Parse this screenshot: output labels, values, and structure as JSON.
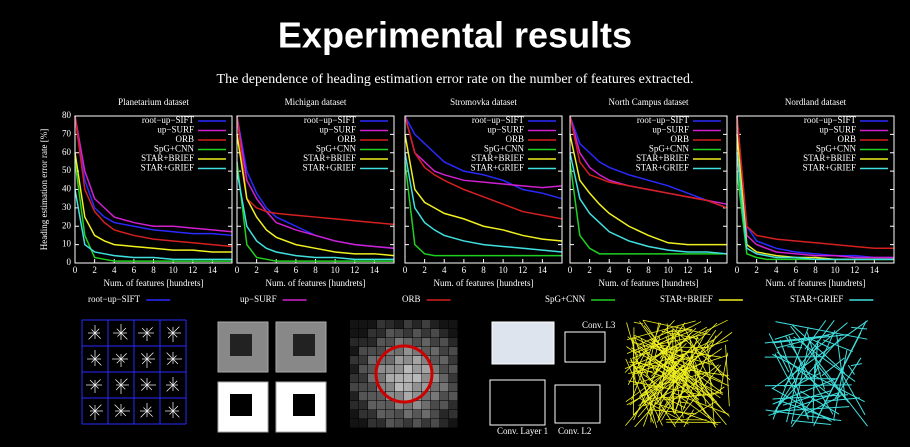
{
  "title": "Experimental results",
  "subtitle": "The dependence of heading estimation error rate on the number of features extracted.",
  "illustrations": {
    "cnn_labels": [
      "Conv. L3",
      "Conv. Layer 1",
      "Conv. L2"
    ]
  },
  "chart_data": [
    {
      "type": "line",
      "title": "Planetarium dataset",
      "xlabel": "Num. of features [hundrets]",
      "ylabel": "Heading estimation error rate [%]",
      "x": [
        0,
        1,
        2,
        3,
        4,
        6,
        8,
        10,
        12,
        14,
        16
      ],
      "xlim": [
        0,
        16
      ],
      "ylim": [
        0,
        80
      ],
      "xticks": [
        0,
        2,
        4,
        6,
        8,
        10,
        12,
        14
      ],
      "yticks": [
        0,
        10,
        20,
        30,
        40,
        50,
        60,
        70,
        80
      ],
      "legend": "upper right",
      "series": [
        {
          "name": "root−up−SIFT",
          "color": "#2a2aff",
          "values": [
            80,
            45,
            30,
            25,
            22,
            20,
            18,
            17,
            16,
            16,
            15
          ]
        },
        {
          "name": "up−SURF",
          "color": "#d020d0",
          "values": [
            80,
            50,
            35,
            30,
            25,
            22,
            20,
            20,
            19,
            18,
            17
          ]
        },
        {
          "name": "ORB",
          "color": "#d42020",
          "values": [
            80,
            40,
            28,
            22,
            18,
            15,
            13,
            12,
            11,
            10,
            9
          ]
        },
        {
          "name": "SpG+CNN",
          "color": "#20d020",
          "values": [
            55,
            15,
            3,
            2,
            1,
            1,
            1,
            1,
            1,
            1,
            1
          ]
        },
        {
          "name": "STAR+BRIEF",
          "color": "#f0f020",
          "values": [
            60,
            25,
            15,
            12,
            10,
            9,
            8,
            7,
            7,
            6,
            6
          ]
        },
        {
          "name": "STAR+GRIEF",
          "color": "#40e0e0",
          "values": [
            40,
            10,
            6,
            5,
            4,
            3,
            3,
            2,
            2,
            2,
            2
          ]
        }
      ]
    },
    {
      "type": "line",
      "title": "Michigan dataset",
      "xlabel": "Num. of features [hundrets]",
      "x": [
        0,
        1,
        2,
        3,
        4,
        6,
        8,
        10,
        12,
        14,
        16
      ],
      "xlim": [
        0,
        16
      ],
      "ylim": [
        0,
        80
      ],
      "xticks": [
        0,
        2,
        4,
        6,
        8,
        10,
        12,
        14
      ],
      "yticks": [
        0,
        10,
        20,
        30,
        40,
        50,
        60,
        70,
        80
      ],
      "legend": "upper right",
      "series": [
        {
          "name": "root−up−SIFT",
          "color": "#2a2aff",
          "values": [
            80,
            50,
            38,
            30,
            25,
            20,
            15,
            12,
            10,
            9,
            8
          ]
        },
        {
          "name": "up−SURF",
          "color": "#d020d0",
          "values": [
            80,
            45,
            35,
            28,
            22,
            18,
            15,
            12,
            10,
            9,
            8
          ]
        },
        {
          "name": "ORB",
          "color": "#d42020",
          "values": [
            80,
            35,
            30,
            28,
            27,
            26,
            25,
            24,
            23,
            22,
            21
          ]
        },
        {
          "name": "SpG+CNN",
          "color": "#20d020",
          "values": [
            55,
            10,
            3,
            2,
            1,
            1,
            1,
            1,
            1,
            1,
            1
          ]
        },
        {
          "name": "STAR+BRIEF",
          "color": "#f0f020",
          "values": [
            70,
            35,
            25,
            18,
            14,
            10,
            8,
            6,
            5,
            5,
            4
          ]
        },
        {
          "name": "STAR+GRIEF",
          "color": "#40e0e0",
          "values": [
            50,
            20,
            12,
            8,
            6,
            4,
            3,
            3,
            2,
            2,
            2
          ]
        }
      ]
    },
    {
      "type": "line",
      "title": "Stromovka dataset",
      "xlabel": "Num. of features [hundrets]",
      "x": [
        0,
        1,
        2,
        3,
        4,
        6,
        8,
        10,
        12,
        14,
        16
      ],
      "xlim": [
        0,
        16
      ],
      "ylim": [
        0,
        80
      ],
      "xticks": [
        0,
        2,
        4,
        6,
        8,
        10,
        12,
        14
      ],
      "yticks": [
        0,
        10,
        20,
        30,
        40,
        50,
        60,
        70,
        80
      ],
      "legend": "upper right",
      "series": [
        {
          "name": "root−up−SIFT",
          "color": "#2a2aff",
          "values": [
            80,
            70,
            65,
            60,
            55,
            50,
            48,
            45,
            40,
            38,
            35
          ]
        },
        {
          "name": "up−SURF",
          "color": "#d020d0",
          "values": [
            80,
            60,
            55,
            50,
            48,
            45,
            44,
            43,
            42,
            41,
            42
          ]
        },
        {
          "name": "ORB",
          "color": "#d42020",
          "values": [
            80,
            60,
            52,
            48,
            45,
            40,
            36,
            32,
            28,
            26,
            24
          ]
        },
        {
          "name": "SpG+CNN",
          "color": "#20d020",
          "values": [
            55,
            10,
            5,
            4,
            4,
            4,
            4,
            4,
            4,
            4,
            4
          ]
        },
        {
          "name": "STAR+BRIEF",
          "color": "#f0f020",
          "values": [
            70,
            40,
            33,
            30,
            27,
            24,
            20,
            18,
            15,
            13,
            12
          ]
        },
        {
          "name": "STAR+GRIEF",
          "color": "#40e0e0",
          "values": [
            60,
            30,
            22,
            18,
            15,
            12,
            10,
            9,
            8,
            7,
            6
          ]
        }
      ]
    },
    {
      "type": "line",
      "title": "North Campus dataset",
      "xlabel": "Num. of features [hundrets]",
      "x": [
        0,
        1,
        2,
        3,
        4,
        6,
        8,
        10,
        12,
        14,
        16
      ],
      "xlim": [
        0,
        16
      ],
      "ylim": [
        0,
        80
      ],
      "xticks": [
        0,
        2,
        4,
        6,
        8,
        10,
        12,
        14
      ],
      "yticks": [
        0,
        10,
        20,
        30,
        40,
        50,
        60,
        70,
        80
      ],
      "legend": "upper right",
      "series": [
        {
          "name": "root−up−SIFT",
          "color": "#2a2aff",
          "values": [
            80,
            65,
            60,
            55,
            52,
            48,
            45,
            42,
            38,
            34,
            30
          ]
        },
        {
          "name": "up−SURF",
          "color": "#d020d0",
          "values": [
            80,
            60,
            52,
            48,
            45,
            42,
            40,
            38,
            36,
            34,
            32
          ]
        },
        {
          "name": "ORB",
          "color": "#d42020",
          "values": [
            80,
            55,
            48,
            46,
            44,
            42,
            40,
            38,
            36,
            34,
            30
          ]
        },
        {
          "name": "SpG+CNN",
          "color": "#20d020",
          "values": [
            55,
            15,
            8,
            5,
            5,
            5,
            5,
            5,
            5,
            5,
            5
          ]
        },
        {
          "name": "STAR+BRIEF",
          "color": "#f0f020",
          "values": [
            70,
            45,
            38,
            32,
            27,
            20,
            15,
            11,
            10,
            10,
            10
          ]
        },
        {
          "name": "STAR+GRIEF",
          "color": "#40e0e0",
          "values": [
            60,
            35,
            27,
            22,
            17,
            12,
            9,
            7,
            6,
            6,
            5
          ]
        }
      ]
    },
    {
      "type": "line",
      "title": "Nordland dataset",
      "xlabel": "Num. of features [hundrets]",
      "x": [
        0,
        1,
        2,
        3,
        4,
        6,
        8,
        10,
        12,
        14,
        16
      ],
      "xlim": [
        0,
        16
      ],
      "ylim": [
        0,
        80
      ],
      "xticks": [
        0,
        2,
        4,
        6,
        8,
        10,
        12,
        14
      ],
      "yticks": [
        0,
        10,
        20,
        30,
        40,
        50,
        60,
        70,
        80
      ],
      "legend": "upper right",
      "series": [
        {
          "name": "root−up−SIFT",
          "color": "#2a2aff",
          "values": [
            80,
            20,
            12,
            10,
            8,
            6,
            5,
            4,
            4,
            3,
            3
          ]
        },
        {
          "name": "up−SURF",
          "color": "#d020d0",
          "values": [
            80,
            15,
            10,
            8,
            6,
            5,
            4,
            4,
            3,
            3,
            3
          ]
        },
        {
          "name": "ORB",
          "color": "#d42020",
          "values": [
            80,
            20,
            15,
            14,
            13,
            12,
            11,
            10,
            9,
            8,
            8
          ]
        },
        {
          "name": "SpG+CNN",
          "color": "#20d020",
          "values": [
            50,
            5,
            3,
            2,
            2,
            2,
            2,
            2,
            2,
            2,
            2
          ]
        },
        {
          "name": "STAR+BRIEF",
          "color": "#f0f020",
          "values": [
            70,
            10,
            6,
            5,
            4,
            3,
            3,
            2,
            2,
            2,
            2
          ]
        },
        {
          "name": "STAR+GRIEF",
          "color": "#40e0e0",
          "values": [
            60,
            8,
            5,
            4,
            3,
            3,
            2,
            2,
            2,
            2,
            2
          ]
        }
      ]
    }
  ]
}
